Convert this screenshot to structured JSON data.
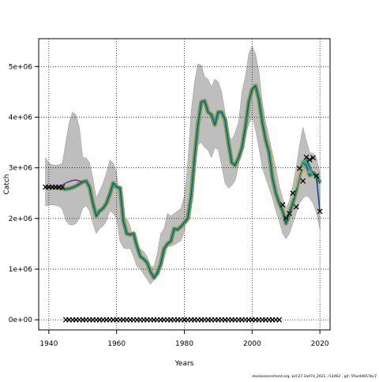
{
  "chart_data": {
    "type": "line",
    "xlabel": "Years",
    "ylabel": "Catch",
    "xlim": [
      1937,
      2023
    ],
    "ylim": [
      -200000,
      5550000
    ],
    "grid": true,
    "x_ticks": [
      1940,
      1960,
      1980,
      2000,
      2020
    ],
    "x_tick_labels": [
      "1940",
      "1960",
      "1980",
      "2000",
      "2020"
    ],
    "y_ticks": [
      0,
      1000000,
      2000000,
      3000000,
      4000000,
      5000000
    ],
    "y_tick_labels": [
      "0e+00",
      "1e+06",
      "2e+06",
      "3e+06",
      "4e+06",
      "5e+06"
    ],
    "footer": "stockassessment.org, wd:27.3a47d_2021, r14462 , git: 5fae4d657bc7",
    "colors": {
      "band": "#bebebe",
      "estimate": "#1a3f8f",
      "retro_lines": [
        "#3a9d3a",
        "#d7a12e",
        "#33b3b3",
        "#6a3d9a",
        "#e07ab8",
        "#a6cd4a"
      ],
      "observations": "#000000"
    },
    "band": {
      "x": [
        1939,
        1940,
        1941,
        1942,
        1943,
        1944,
        1945,
        1946,
        1947,
        1948,
        1949,
        1950,
        1951,
        1952,
        1953,
        1954,
        1955,
        1956,
        1957,
        1958,
        1959,
        1960,
        1961,
        1962,
        1963,
        1964,
        1965,
        1966,
        1967,
        1968,
        1969,
        1970,
        1971,
        1972,
        1973,
        1974,
        1975,
        1976,
        1977,
        1978,
        1979,
        1980,
        1981,
        1982,
        1983,
        1984,
        1985,
        1986,
        1987,
        1988,
        1989,
        1990,
        1991,
        1992,
        1993,
        1994,
        1995,
        1996,
        1997,
        1998,
        1999,
        2000,
        2001,
        2002,
        2003,
        2004,
        2005,
        2006,
        2007,
        2008,
        2009,
        2010,
        2011,
        2012,
        2013,
        2014,
        2015,
        2016,
        2017,
        2018,
        2019,
        2020
      ],
      "lower": [
        2250000,
        2260000,
        2270000,
        2260000,
        2240000,
        2180000,
        1960000,
        1880000,
        1870000,
        1900000,
        2000000,
        2200000,
        2250000,
        2150000,
        1900000,
        1700000,
        1800000,
        1850000,
        1950000,
        2150000,
        2100000,
        2000000,
        1550000,
        1420000,
        1400000,
        1410000,
        1250000,
        1050000,
        1000000,
        900000,
        800000,
        700000,
        780000,
        950000,
        1150000,
        1200000,
        1450000,
        1450000,
        1480000,
        1520000,
        1560000,
        1750000,
        2200000,
        2650000,
        3350000,
        3450000,
        3500000,
        3400000,
        3350000,
        3200000,
        3400000,
        3350000,
        3050000,
        2700000,
        2600000,
        2650000,
        2750000,
        3050000,
        3350000,
        3650000,
        3850000,
        4000000,
        3750000,
        3400000,
        3000000,
        2800000,
        2600000,
        2400000,
        2150000,
        1950000,
        1700000,
        1600000,
        1700000,
        1900000,
        2100000,
        2300000,
        2400000,
        2450000,
        2400000,
        2300000,
        2100000,
        1800000
      ],
      "upper": [
        3200000,
        3100000,
        3060000,
        3050000,
        3060000,
        3100000,
        3500000,
        3900000,
        4100000,
        4050000,
        3800000,
        3200000,
        3200000,
        3100000,
        2800000,
        2400000,
        2550000,
        2700000,
        2900000,
        3150000,
        3100000,
        2900000,
        2300000,
        1950000,
        2000000,
        1850000,
        1550000,
        1450000,
        1400000,
        1350000,
        1250000,
        1050000,
        1050000,
        1300000,
        1700000,
        1800000,
        2100000,
        2050000,
        2100000,
        2150000,
        2200000,
        2450000,
        3100000,
        4100000,
        4700000,
        5050000,
        5030000,
        4800000,
        4750000,
        4600000,
        4750000,
        4700000,
        4500000,
        4100000,
        3650000,
        3550000,
        3700000,
        3900000,
        4500000,
        4800000,
        5250000,
        5400000,
        5250000,
        4900000,
        4300000,
        3900000,
        3600000,
        3300000,
        3000000,
        2650000,
        2400000,
        2200000,
        2350000,
        2650000,
        3000000,
        3450000,
        3800000,
        3550000,
        3300000,
        3280000,
        3200000,
        2900000
      ]
    },
    "series": [
      {
        "x": [
          1939,
          1940,
          1941,
          1942,
          1943,
          1944,
          1945,
          1946,
          1947,
          1948,
          1949,
          1950,
          1951,
          1952,
          1953,
          1954,
          1955,
          1956,
          1957,
          1958,
          1959,
          1960,
          1961,
          1962,
          1963,
          1964,
          1965,
          1966,
          1967,
          1968,
          1969,
          1970,
          1971,
          1972,
          1973,
          1974,
          1975,
          1976,
          1977,
          1978,
          1979,
          1980,
          1981,
          1982,
          1983,
          1984,
          1985,
          1986,
          1987,
          1988,
          1989,
          1990,
          1991,
          1992,
          1993,
          1994,
          1995,
          1996,
          1997,
          1998,
          1999,
          2000,
          2001,
          2002,
          2003,
          2004,
          2005,
          2006,
          2007,
          2008,
          2009,
          2010,
          2011,
          2012,
          2013,
          2014,
          2015,
          2016,
          2017,
          2018,
          2019,
          2020
        ],
        "values": [
          2620000,
          2620000,
          2615000,
          2610000,
          2600000,
          2590000,
          2580000,
          2590000,
          2610000,
          2640000,
          2680000,
          2720000,
          2740000,
          2620000,
          2300000,
          2050000,
          2150000,
          2200000,
          2300000,
          2480000,
          2700000,
          2620000,
          2600000,
          1950000,
          1700000,
          1680000,
          1700000,
          1450000,
          1250000,
          1200000,
          1130000,
          950000,
          830000,
          920000,
          1100000,
          1400000,
          1500000,
          1550000,
          1800000,
          1780000,
          1840000,
          1920000,
          2000000,
          2450000,
          3200000,
          3850000,
          4300000,
          4320000,
          4100000,
          4050000,
          3850000,
          4100000,
          4100000,
          3950000,
          3500000,
          3100000,
          3050000,
          3200000,
          3400000,
          3800000,
          4300000,
          4550000,
          4620000,
          4350000,
          3900000,
          3550000,
          3300000,
          2800000,
          2500000,
          2300000,
          2150000,
          1900000,
          2100000,
          2300000,
          2550000,
          2850000,
          3100000,
          3050000,
          2850000,
          2900000,
          2850000,
          2700000
        ]
      }
    ],
    "retro_tails": [
      {
        "x": [
          2016,
          2017,
          2018,
          2019,
          2020
        ],
        "values": [
          3150000,
          3000000,
          2900000,
          2800000,
          2150000
        ]
      },
      {
        "x": [
          2015,
          2016,
          2017,
          2018,
          2019
        ],
        "values": [
          3050000,
          3200000,
          3050000,
          2850000,
          2800000
        ]
      },
      {
        "x": [
          2014,
          2015,
          2016,
          2017,
          2018
        ],
        "values": [
          2950000,
          3150000,
          3100000,
          2950000,
          2850000
        ]
      },
      {
        "x": [
          2013,
          2014,
          2015,
          2016,
          2017
        ],
        "values": [
          2600000,
          2900000,
          3050000,
          2950000,
          2900000
        ]
      },
      {
        "x": [
          2012,
          2013,
          2014,
          2015,
          2016
        ],
        "values": [
          2400000,
          2700000,
          2950000,
          3000000,
          2900000
        ]
      },
      {
        "x": [
          1939,
          1940,
          1941,
          1942,
          1943,
          1944,
          1945,
          1946,
          1947,
          1948,
          1949,
          1950
        ],
        "values": [
          2620000,
          2620000,
          2620000,
          2620000,
          2630000,
          2660000,
          2700000,
          2730000,
          2750000,
          2760000,
          2740000,
          2720000
        ]
      }
    ],
    "observations": {
      "x": [
        1939,
        1940,
        1941,
        1942,
        1943,
        1944,
        2009,
        2010,
        2011,
        2012,
        2013,
        2014,
        2015,
        2016,
        2017,
        2018,
        2019,
        2020
      ],
      "values": [
        2620000,
        2620000,
        2620000,
        2620000,
        2620000,
        2620000,
        2270000,
        2010000,
        2100000,
        2500000,
        2230000,
        2990000,
        2740000,
        3210000,
        3160000,
        3200000,
        2840000,
        2140000
      ]
    },
    "zero_marks": {
      "x_start": 1945,
      "x_end": 2008,
      "value": 0
    }
  }
}
